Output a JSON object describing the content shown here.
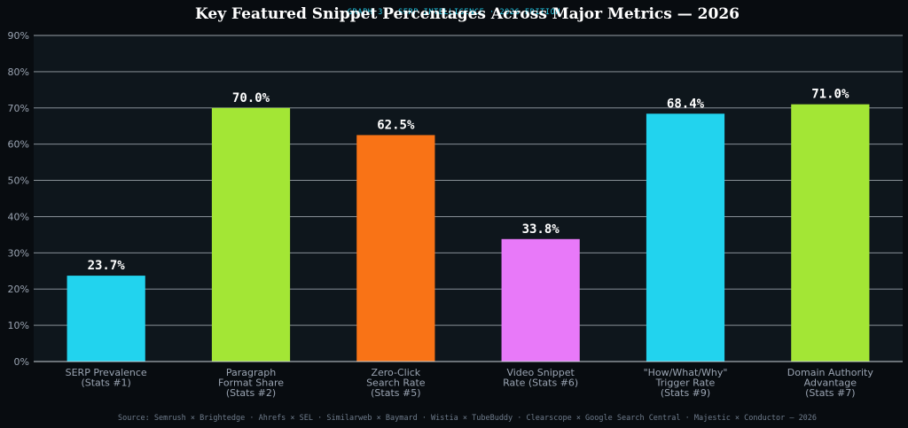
{
  "overtitle": "GRAPH 3 · SERP INTELLIGENCE · 2026 EDITION",
  "source": "Source: Semrush × Brightedge · Ahrefs × SEL · Similarweb × Baymard · Wistia × TubeBuddy · Clearscope × Google Search Central · Majestic × Conductor — 2026",
  "chart_data": {
    "type": "bar",
    "title": "Key Featured Snippet Percentages Across Major Metrics — 2026",
    "xlabel": "",
    "ylabel": "",
    "ylim": [
      0,
      90
    ],
    "y_ticks": [
      "0%",
      "10%",
      "20%",
      "30%",
      "40%",
      "50%",
      "60%",
      "70%",
      "80%",
      "90%"
    ],
    "grid": true,
    "categories": [
      [
        "SERP Prevalence",
        "(Stats #1)"
      ],
      [
        "Paragraph",
        "Format Share",
        "(Stats #2)"
      ],
      [
        "Zero-Click",
        "Search Rate",
        "(Stats #5)"
      ],
      [
        "Video Snippet",
        "Rate (Stats #6)"
      ],
      [
        "\"How/What/Why\"",
        "Trigger Rate",
        "(Stats #9)"
      ],
      [
        "Domain Authority",
        "Advantage",
        "(Stats #7)"
      ]
    ],
    "values": [
      23.7,
      70.0,
      62.5,
      33.8,
      68.4,
      71.0
    ],
    "value_labels": [
      "23.7%",
      "70.0%",
      "62.5%",
      "33.8%",
      "68.4%",
      "71.0%"
    ],
    "colors": [
      "#22d3ee",
      "#a3e635",
      "#f97316",
      "#e879f9",
      "#22d3ee",
      "#a3e635"
    ],
    "plot_background": "#0e161c",
    "page_background": "#080c10"
  }
}
